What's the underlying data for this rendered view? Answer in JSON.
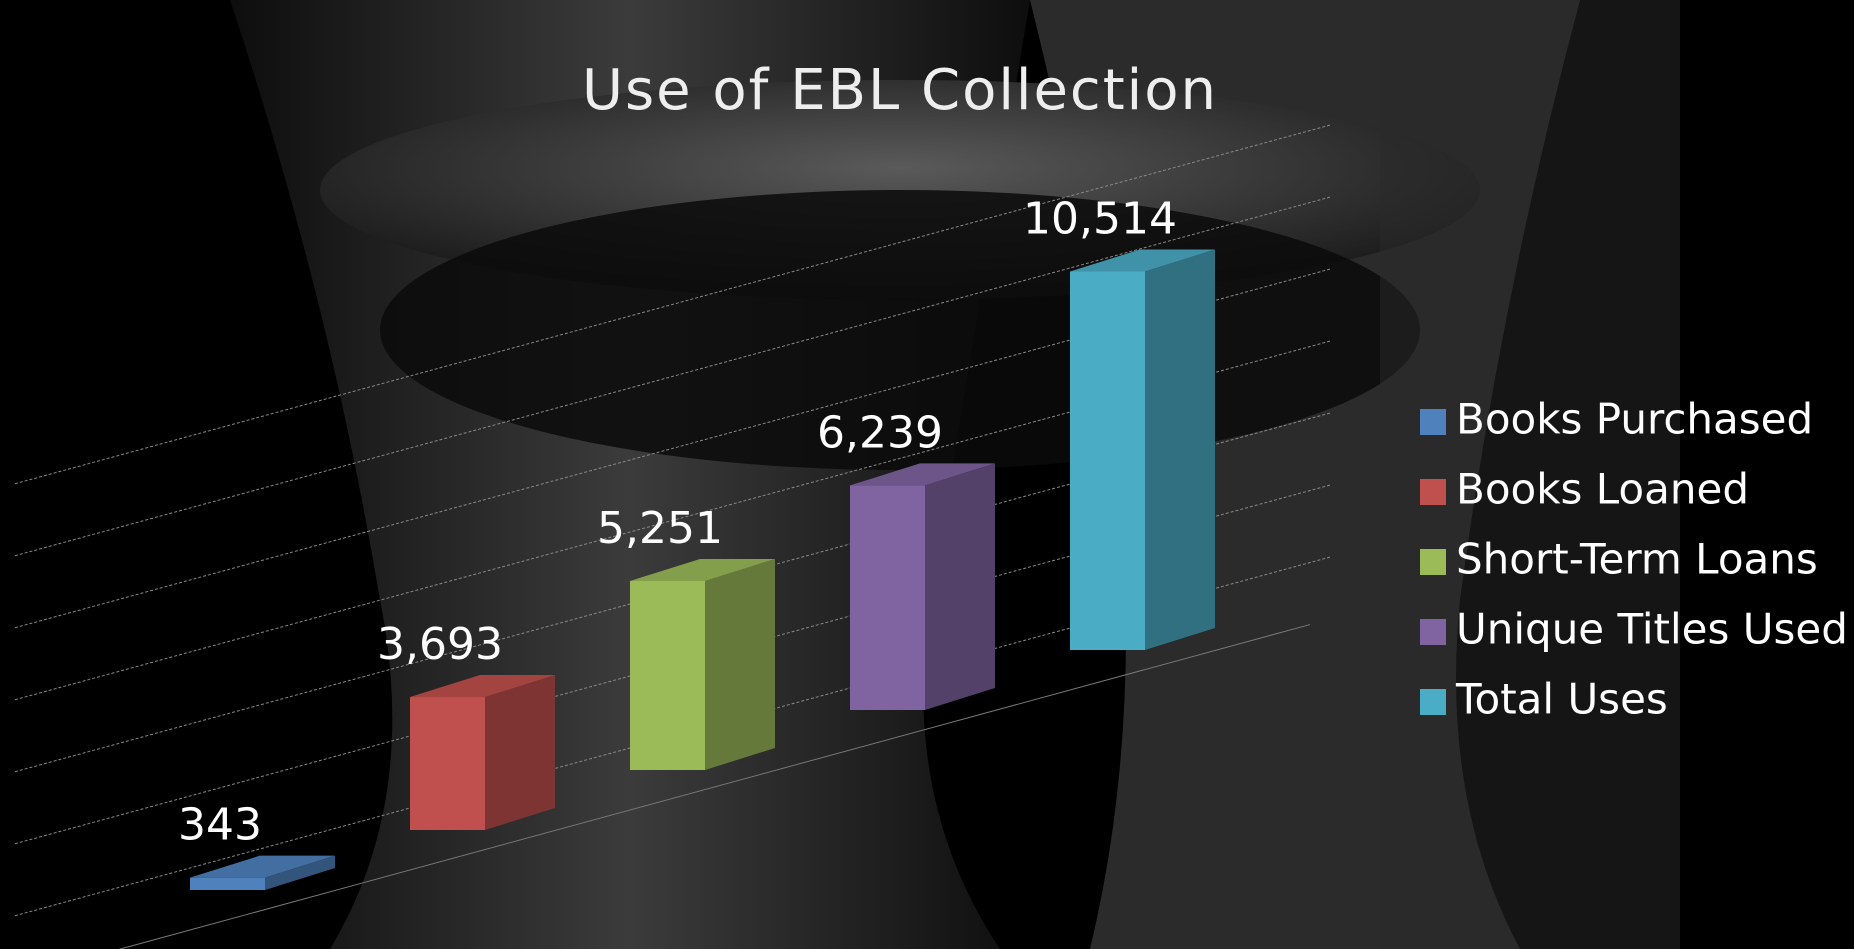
{
  "chart_data": {
    "type": "bar3d",
    "title": "Use of EBL Collection",
    "series": [
      {
        "name": "Books Purchased",
        "color": "#4f81bd",
        "values": [
          343
        ]
      },
      {
        "name": "Books Loaned",
        "color": "#c0504d",
        "values": [
          3693
        ],
        "value_labels": [
          "3,693"
        ]
      },
      {
        "name": "Short-Term Loans",
        "color": "#9bbb59",
        "values": [
          5251
        ],
        "value_labels": [
          "5,251"
        ]
      },
      {
        "name": "Unique Titles Used",
        "color": "#8064a2",
        "values": [
          6239
        ],
        "value_labels": [
          "6,239"
        ]
      },
      {
        "name": "Total Uses",
        "color": "#4bacc6",
        "values": [
          10514
        ],
        "value_labels": [
          "10,514"
        ]
      }
    ],
    "ylim": [
      0,
      12000
    ],
    "yticks": [
      0,
      2000,
      4000,
      6000,
      8000,
      10000,
      12000
    ],
    "grid": true,
    "legend": "right"
  }
}
